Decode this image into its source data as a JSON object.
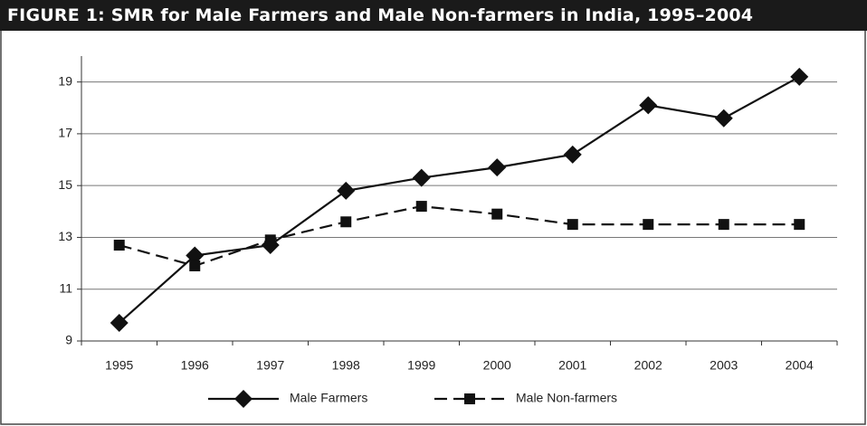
{
  "chart_data": {
    "type": "line",
    "title": "FIGURE 1: SMR for Male Farmers and Male Non-farmers in India, 1995–2004",
    "categories": [
      "1995",
      "1996",
      "1997",
      "1998",
      "1999",
      "2000",
      "2001",
      "2002",
      "2003",
      "2004"
    ],
    "series": [
      {
        "name": "Male Farmers",
        "color": "#111111",
        "marker": "diamond",
        "dashed": false,
        "values": [
          9.7,
          12.3,
          12.7,
          14.8,
          15.3,
          15.7,
          16.2,
          18.1,
          17.6,
          19.2
        ]
      },
      {
        "name": "Male Non-farmers",
        "color": "#111111",
        "marker": "square",
        "dashed": true,
        "values": [
          12.7,
          11.9,
          12.9,
          13.6,
          14.2,
          13.9,
          13.5,
          13.5,
          13.5,
          13.5
        ]
      }
    ],
    "ylim": [
      9,
      20
    ],
    "yticks": [
      9,
      11,
      13,
      15,
      17,
      19
    ],
    "grid": true
  }
}
